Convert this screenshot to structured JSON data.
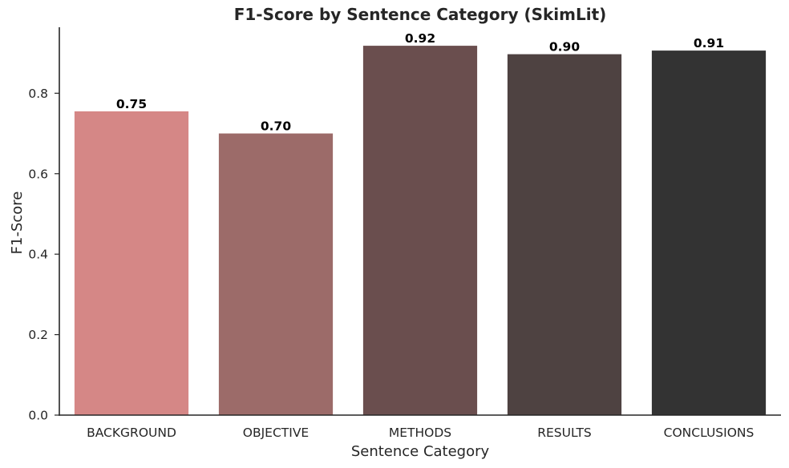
{
  "chart_data": {
    "type": "bar",
    "title": "F1-Score by Sentence Category (SkimLit)",
    "xlabel": "Sentence Category",
    "ylabel": "F1-Score",
    "categories": [
      "BACKGROUND",
      "OBJECTIVE",
      "METHODS",
      "RESULTS",
      "CONCLUSIONS"
    ],
    "values": [
      0.755,
      0.7,
      0.918,
      0.897,
      0.906
    ],
    "value_labels": [
      "0.75",
      "0.70",
      "0.92",
      "0.90",
      "0.91"
    ],
    "ylim": [
      0,
      0.964
    ],
    "yticks": [
      0.0,
      0.2,
      0.4,
      0.6,
      0.8
    ],
    "ytick_labels": [
      "0.0",
      "0.2",
      "0.4",
      "0.6",
      "0.8"
    ],
    "colors": [
      "#d58786",
      "#9c6b69",
      "#6a4e4e",
      "#4e4241",
      "#333333"
    ],
    "grid": false,
    "legend": "none"
  }
}
